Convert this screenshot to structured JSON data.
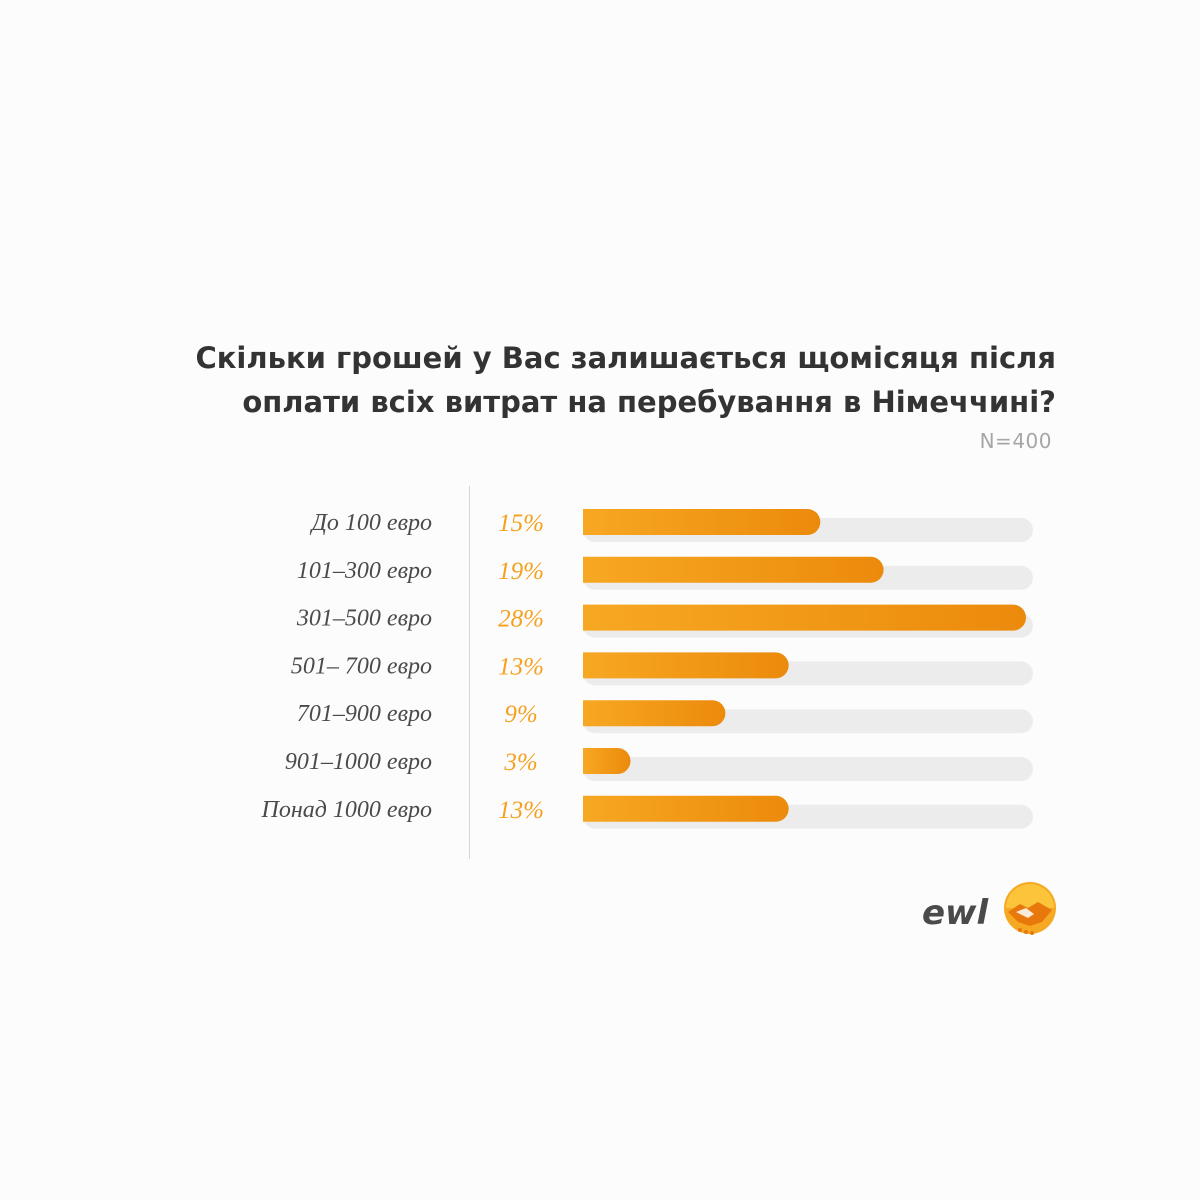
{
  "header": {
    "title_line1": "Скільки грошей у Вас залишається щомісяця після",
    "title_line2": "оплати всіх витрат на перебування в Німеччині?",
    "sample_size": "N=400"
  },
  "colors": {
    "bar_start": "#f7a823",
    "bar_end": "#ec8a0c",
    "track": "#ececec",
    "percent_text": "#f5a01e",
    "label_text": "#4a4a4a",
    "title_text": "#333333"
  },
  "chart_data": {
    "type": "bar",
    "orientation": "horizontal",
    "title": "Скільки грошей у Вас залишається щомісяця після оплати всіх витрат на перебування в Німеччині?",
    "categories": [
      "До 100 евро",
      "101–300 евро",
      "301–500 евро",
      "501– 700 евро",
      "701–900 евро",
      "901–1000 евро",
      "Понад 1000 евро"
    ],
    "values": [
      15,
      19,
      28,
      13,
      9,
      3,
      13
    ],
    "value_labels": [
      "15%",
      "19%",
      "28%",
      "13%",
      "9%",
      "3%",
      "13%"
    ],
    "unit": "%",
    "xlim": [
      0,
      28
    ],
    "grid": false,
    "legend": "none"
  },
  "logo": {
    "text": "ewl",
    "icon": "handshake-icon"
  }
}
